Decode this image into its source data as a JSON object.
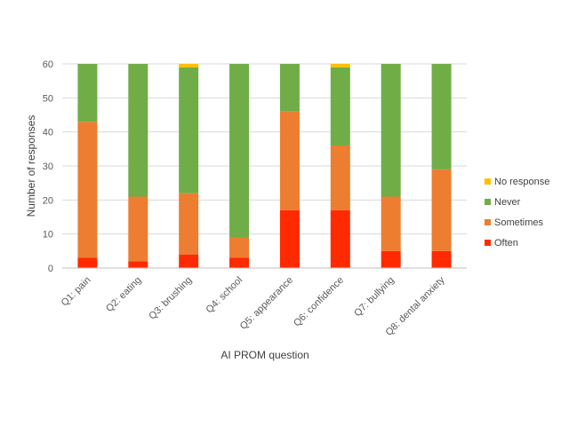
{
  "chart_data": {
    "type": "bar",
    "stacked": true,
    "title": "",
    "xlabel": "AI PROM question",
    "ylabel": "Number of responses",
    "ylim": [
      0,
      60
    ],
    "yticks": [
      0,
      10,
      20,
      30,
      40,
      50,
      60
    ],
    "grid": true,
    "legend_position": "right",
    "categories": [
      "Q1: pain",
      "Q2: eating",
      "Q3: brushing",
      "Q4: school",
      "Q5: appearance",
      "Q6: confidence",
      "Q7: bullying",
      "Q8: dental anxiety"
    ],
    "series": [
      {
        "name": "Often",
        "color": "#ff2a00",
        "values": [
          3,
          2,
          4,
          3,
          17,
          17,
          5,
          5
        ]
      },
      {
        "name": "Sometimes",
        "color": "#ed7d31",
        "values": [
          40,
          19,
          18,
          6,
          29,
          19,
          16,
          24
        ]
      },
      {
        "name": "Never",
        "color": "#70ad47",
        "values": [
          17,
          39,
          37,
          51,
          14,
          23,
          39,
          31
        ]
      },
      {
        "name": "No response",
        "color": "#ffc000",
        "values": [
          0,
          0,
          1,
          0,
          0,
          1,
          0,
          0
        ]
      }
    ],
    "legend_order": [
      "No response",
      "Never",
      "Sometimes",
      "Often"
    ]
  }
}
